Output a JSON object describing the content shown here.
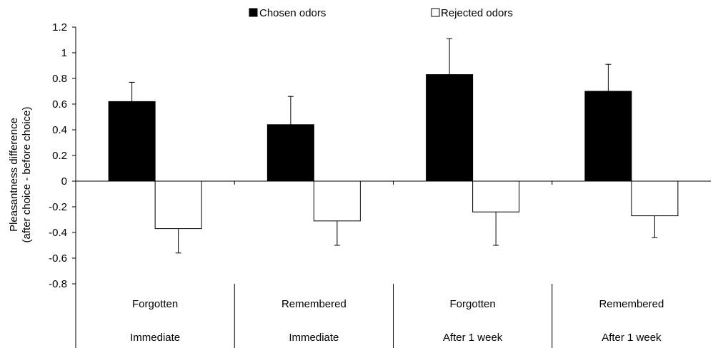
{
  "chart_data": {
    "type": "bar",
    "ylabel_line1": "Pleasantness difference",
    "ylabel_line2": "(after choice - before choice)",
    "ylim": [
      -0.8,
      1.2
    ],
    "yticks": [
      "1.2",
      "1",
      "0.8",
      "0.6",
      "0.4",
      "0.2",
      "0",
      "-0.2",
      "-0.4",
      "-0.6",
      "-0.8"
    ],
    "ytick_values": [
      1.2,
      1.0,
      0.8,
      0.6,
      0.4,
      0.2,
      0.0,
      -0.2,
      -0.4,
      -0.6,
      -0.8
    ],
    "grid": false,
    "legend_position": "top",
    "categories": [
      {
        "sub": "Forgotten",
        "group": "Immediate"
      },
      {
        "sub": "Remembered",
        "group": "Immediate"
      },
      {
        "sub": "Forgotten",
        "group": "After 1 week"
      },
      {
        "sub": "Remembered",
        "group": "After 1 week"
      }
    ],
    "series": [
      {
        "name": "Chosen odors",
        "color": "#000000",
        "values": [
          0.62,
          0.44,
          0.83,
          0.7
        ],
        "errors": [
          0.15,
          0.22,
          0.28,
          0.21
        ]
      },
      {
        "name": "Rejected odors",
        "color": "#ffffff",
        "values": [
          -0.37,
          -0.31,
          -0.24,
          -0.27
        ],
        "errors": [
          0.19,
          0.19,
          0.26,
          0.17
        ]
      }
    ]
  }
}
